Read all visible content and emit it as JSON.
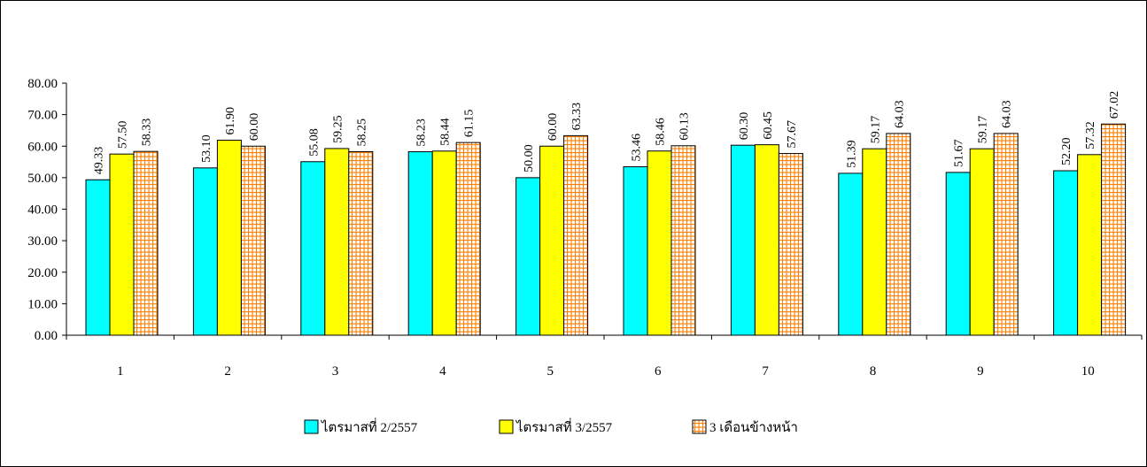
{
  "chart_data": {
    "type": "bar",
    "categories": [
      "1",
      "2",
      "3",
      "4",
      "5",
      "6",
      "7",
      "8",
      "9",
      "10"
    ],
    "series": [
      {
        "name": "ไตรมาสที่ 2/2557",
        "color": "#00ffff",
        "values": [
          49.33,
          53.1,
          55.08,
          58.23,
          50.0,
          53.46,
          60.3,
          51.39,
          51.67,
          52.2
        ],
        "labels": [
          "49.33",
          "53.10",
          "55.08",
          "58.23",
          "50.00",
          "53.46",
          "60.30",
          "51.39",
          "51.67",
          "52.20"
        ]
      },
      {
        "name": "ไตรมาสที่ 3/2557",
        "color": "#ffff00",
        "values": [
          57.5,
          61.9,
          59.25,
          58.44,
          60.0,
          58.46,
          60.45,
          59.17,
          59.17,
          57.32
        ],
        "labels": [
          "57.50",
          "61.90",
          "59.25",
          "58.44",
          "60.00",
          "58.46",
          "60.45",
          "59.17",
          "59.17",
          "57.32"
        ]
      },
      {
        "name": "3 เดือนข้างหน้า",
        "color": "#ff8000",
        "pattern": "grid",
        "values": [
          58.33,
          60.0,
          58.25,
          61.15,
          63.33,
          60.13,
          57.67,
          64.03,
          64.03,
          67.02
        ],
        "labels": [
          "58.33",
          "60.00",
          "58.25",
          "61.15",
          "63.33",
          "60.13",
          "57.67",
          "64.03",
          "64.03",
          "67.02"
        ]
      }
    ],
    "ylim": [
      0,
      80
    ],
    "yticks": [
      "0.00",
      "10.00",
      "20.00",
      "30.00",
      "40.00",
      "50.00",
      "60.00",
      "70.00",
      "80.00"
    ],
    "grid": false,
    "legend_position": "bottom-center",
    "title": "",
    "xlabel": "",
    "ylabel": ""
  }
}
